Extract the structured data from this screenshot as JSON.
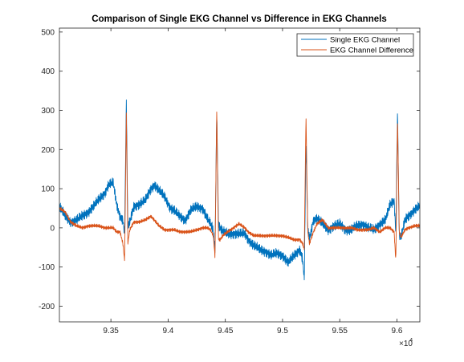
{
  "chart_data": {
    "type": "line",
    "title": "Comparison of Single EKG Channel vs Difference in EKG Channels",
    "xlabel": "",
    "ylabel": "",
    "x_exponent_label": "×10",
    "x_exponent_power": "4",
    "xlim": [
      9.305,
      9.62
    ],
    "ylim": [
      -240,
      510
    ],
    "x_ticks": [
      9.35,
      9.4,
      9.45,
      9.5,
      9.55,
      9.6
    ],
    "x_tick_labels": [
      "9.35",
      "9.4",
      "9.45",
      "9.5",
      "9.55",
      "9.6"
    ],
    "y_ticks": [
      -200,
      -100,
      0,
      100,
      200,
      300,
      400,
      500
    ],
    "y_tick_labels": [
      "-200",
      "-100",
      "0",
      "100",
      "200",
      "300",
      "400",
      "500"
    ],
    "grid": false,
    "legend_position": "top-right",
    "series": [
      {
        "name": "Single EKG Channel",
        "color": "#0072BD",
        "noise_amplitude": 14,
        "x": [
          9.305,
          9.31,
          9.315,
          9.32,
          9.325,
          9.33,
          9.335,
          9.34,
          9.345,
          9.348,
          9.352,
          9.355,
          9.358,
          9.3605,
          9.362,
          9.3635,
          9.3648,
          9.3665,
          9.37,
          9.375,
          9.38,
          9.385,
          9.388,
          9.392,
          9.397,
          9.402,
          9.405,
          9.41,
          9.415,
          9.42,
          9.425,
          9.43,
          9.434,
          9.437,
          9.4395,
          9.441,
          9.4425,
          9.444,
          9.4455,
          9.448,
          9.452,
          9.457,
          9.462,
          9.467,
          9.47,
          9.475,
          9.48,
          9.485,
          9.49,
          9.495,
          9.5,
          9.505,
          9.51,
          9.515,
          9.5175,
          9.519,
          9.5205,
          9.522,
          9.5235,
          9.527,
          9.53,
          9.535,
          9.54,
          9.545,
          9.55,
          9.555,
          9.56,
          9.565,
          9.57,
          9.575,
          9.58,
          9.585,
          9.59,
          9.594,
          9.5975,
          9.599,
          9.6005,
          9.602,
          9.6035,
          9.607,
          9.61,
          9.615,
          9.62
        ],
        "y": [
          55,
          30,
          15,
          20,
          30,
          40,
          55,
          75,
          90,
          110,
          115,
          60,
          30,
          20,
          -15,
          330,
          0,
          15,
          55,
          60,
          70,
          100,
          110,
          95,
          80,
          50,
          45,
          30,
          20,
          45,
          55,
          50,
          25,
          10,
          -5,
          -55,
          300,
          10,
          0,
          -10,
          -15,
          -15,
          -15,
          -15,
          -30,
          -45,
          -55,
          -60,
          -70,
          -65,
          -70,
          -90,
          -70,
          -55,
          -80,
          -130,
          220,
          5,
          -30,
          20,
          25,
          10,
          -5,
          5,
          10,
          -5,
          -5,
          5,
          10,
          0,
          -5,
          10,
          20,
          60,
          70,
          -15,
          300,
          -20,
          -25,
          20,
          30,
          45,
          55
        ]
      },
      {
        "name": "EKG Channel Difference",
        "color": "#D95319",
        "noise_amplitude": 5,
        "x": [
          9.305,
          9.31,
          9.315,
          9.32,
          9.325,
          9.33,
          9.335,
          9.34,
          9.345,
          9.348,
          9.352,
          9.355,
          9.358,
          9.3605,
          9.362,
          9.3635,
          9.3648,
          9.3665,
          9.37,
          9.375,
          9.38,
          9.385,
          9.388,
          9.392,
          9.397,
          9.402,
          9.405,
          9.41,
          9.415,
          9.42,
          9.425,
          9.43,
          9.434,
          9.437,
          9.4395,
          9.441,
          9.4425,
          9.444,
          9.4455,
          9.448,
          9.452,
          9.457,
          9.462,
          9.467,
          9.47,
          9.475,
          9.48,
          9.485,
          9.49,
          9.495,
          9.5,
          9.505,
          9.51,
          9.515,
          9.5175,
          9.519,
          9.5205,
          9.522,
          9.5235,
          9.527,
          9.53,
          9.535,
          9.54,
          9.545,
          9.55,
          9.555,
          9.56,
          9.565,
          9.57,
          9.575,
          9.58,
          9.585,
          9.59,
          9.594,
          9.5975,
          9.599,
          9.6005,
          9.602,
          9.6035,
          9.607,
          9.61,
          9.615,
          9.62
        ],
        "y": [
          50,
          40,
          15,
          5,
          0,
          5,
          5,
          5,
          0,
          0,
          0,
          -10,
          -10,
          -40,
          -85,
          295,
          -40,
          -5,
          15,
          15,
          20,
          30,
          20,
          5,
          -5,
          -5,
          -5,
          -10,
          -10,
          -10,
          -5,
          0,
          0,
          -5,
          -20,
          -75,
          305,
          -30,
          -30,
          -20,
          -10,
          0,
          10,
          0,
          -10,
          -20,
          -20,
          -20,
          -20,
          -20,
          -20,
          -25,
          -30,
          -30,
          -40,
          -55,
          290,
          -10,
          -40,
          -10,
          10,
          20,
          0,
          0,
          0,
          0,
          0,
          -5,
          -5,
          -5,
          0,
          -10,
          0,
          0,
          -10,
          -85,
          280,
          -10,
          -25,
          -5,
          0,
          5,
          5
        ]
      }
    ]
  }
}
